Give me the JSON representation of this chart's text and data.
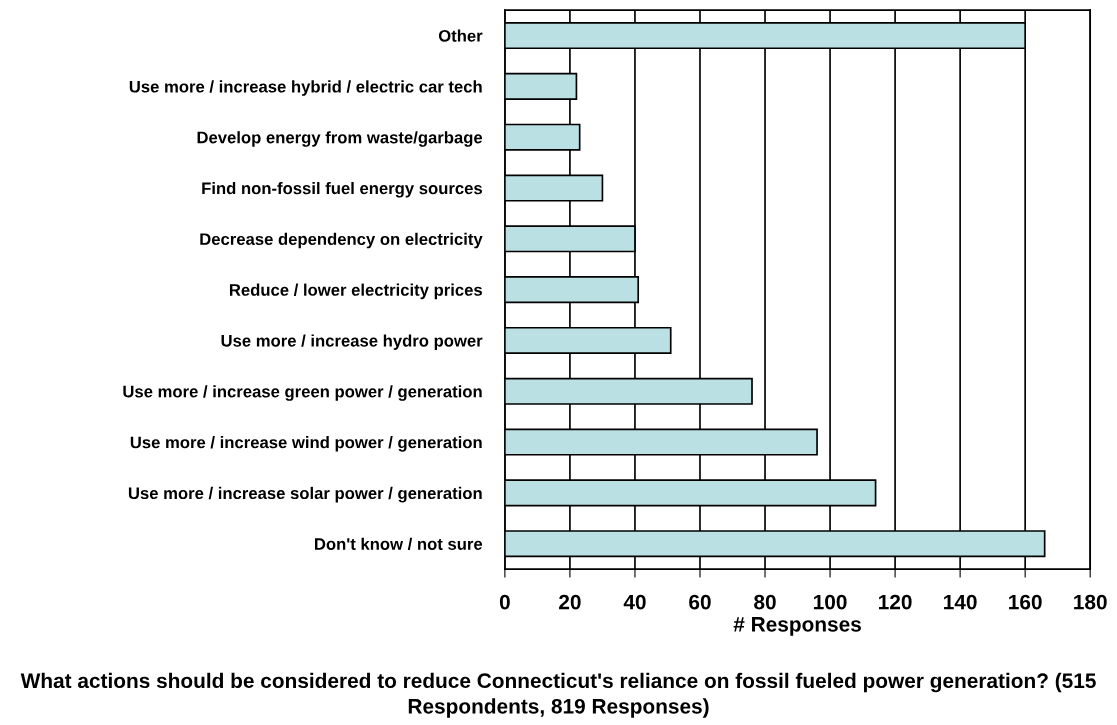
{
  "chart_data": {
    "type": "bar",
    "orientation": "horizontal",
    "title": "What actions should be considered to reduce Connecticut's reliance on fossil fueled power generation? (515 Respondents, 819 Responses)",
    "xlabel": "# Responses",
    "categories": [
      "Other",
      "Use more / increase hybrid / electric car tech",
      "Develop energy from waste/garbage",
      "Find non-fossil fuel energy sources",
      "Decrease dependency on electricity",
      "Reduce / lower electricity prices",
      "Use more / increase hydro power",
      "Use more / increase green power / generation",
      "Use more / increase wind power / generation",
      "Use more / increase solar power / generation",
      "Don't know / not sure"
    ],
    "values": [
      160,
      22,
      23,
      30,
      40,
      41,
      51,
      76,
      96,
      114,
      166
    ],
    "color": "#bbe0e3",
    "xlim": [
      0,
      180
    ],
    "xticks": [
      0,
      20,
      40,
      60,
      80,
      100,
      120,
      140,
      160,
      180
    ],
    "grid": "x",
    "legend": false
  }
}
